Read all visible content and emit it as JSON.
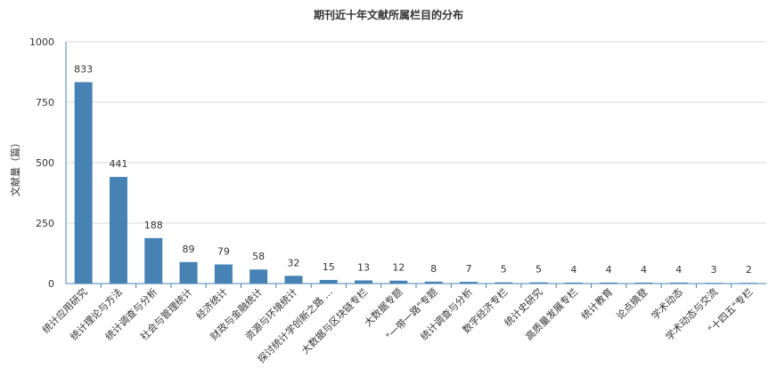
{
  "chart_data": {
    "type": "bar",
    "title": "期刊近十年文献所属栏目的分布",
    "xlabel": "",
    "ylabel": "文献量（篇）",
    "ylim": [
      0,
      1000
    ],
    "yticks": [
      0,
      250,
      500,
      750,
      1000
    ],
    "grid": true,
    "bar_color": "#4682b4",
    "categories": [
      "统计应用研究",
      "统计理论与方法",
      "统计调查与分析",
      "社会与管理统计",
      "经济统计",
      "财政与金融统计",
      "资源与环境统计",
      "探讨统计学创新之路 ...",
      "大数据与区块链专栏",
      "大数据专题",
      "\"一带一路\"专题",
      "统计调查与分析",
      "数字经济专栏",
      "统计史研究",
      "高质量发展专栏",
      "统计教育",
      "论点摘登",
      "学术动态",
      "学术动态与交流",
      "\"十四五\"专栏"
    ],
    "values": [
      833,
      441,
      188,
      89,
      79,
      58,
      32,
      15,
      13,
      12,
      8,
      7,
      5,
      5,
      4,
      4,
      4,
      4,
      3,
      2
    ]
  }
}
